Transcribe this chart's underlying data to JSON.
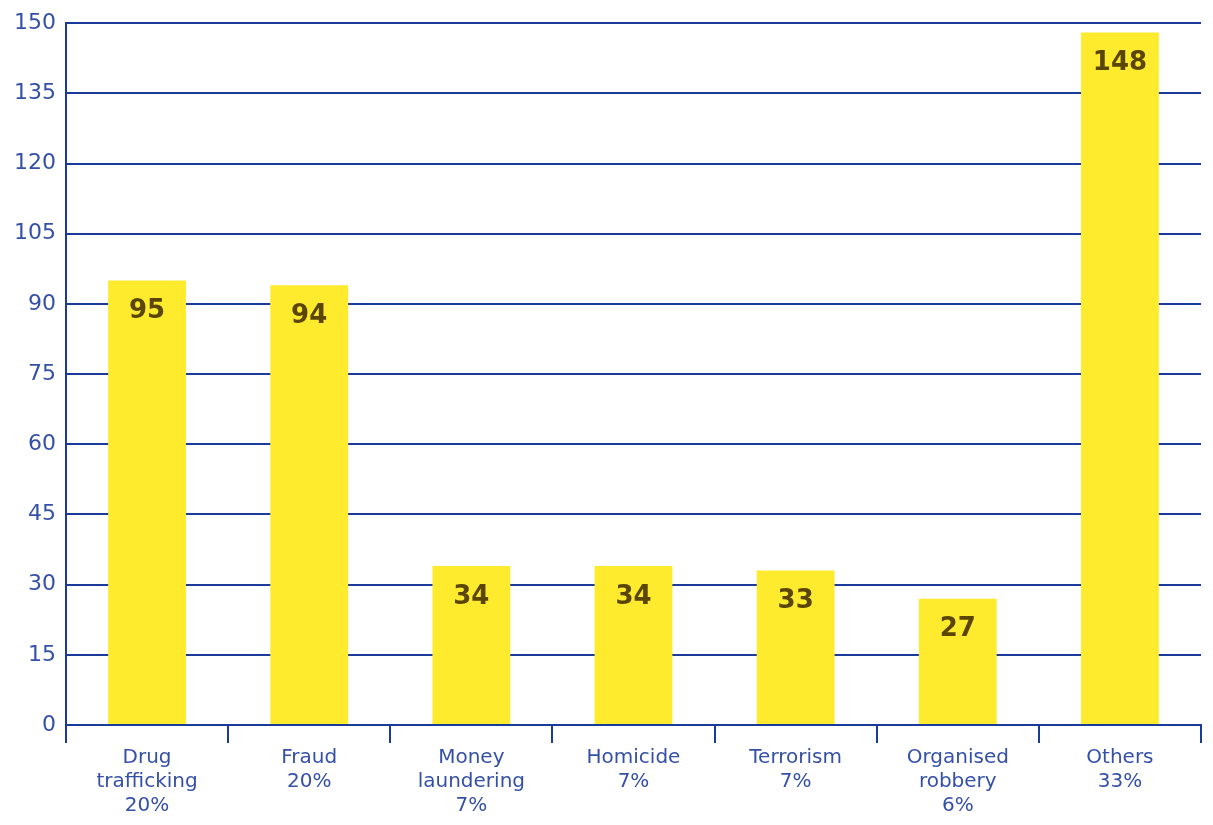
{
  "chart_data": {
    "type": "bar",
    "categories": [
      "Drug\ntrafficking\n20%",
      "Fraud\n20%",
      "Money\nlaundering\n7%",
      "Homicide\n7%",
      "Terrorism\n7%",
      "Organised\nrobbery\n6%",
      "Others\n33%"
    ],
    "values": [
      95,
      94,
      34,
      34,
      33,
      27,
      148
    ],
    "color": "#ffeb2e",
    "ylim": [
      0,
      150
    ],
    "yticks": [
      0,
      15,
      30,
      45,
      60,
      75,
      90,
      105,
      120,
      135,
      150
    ],
    "grid": "y",
    "data_labels": true,
    "legend": false
  }
}
